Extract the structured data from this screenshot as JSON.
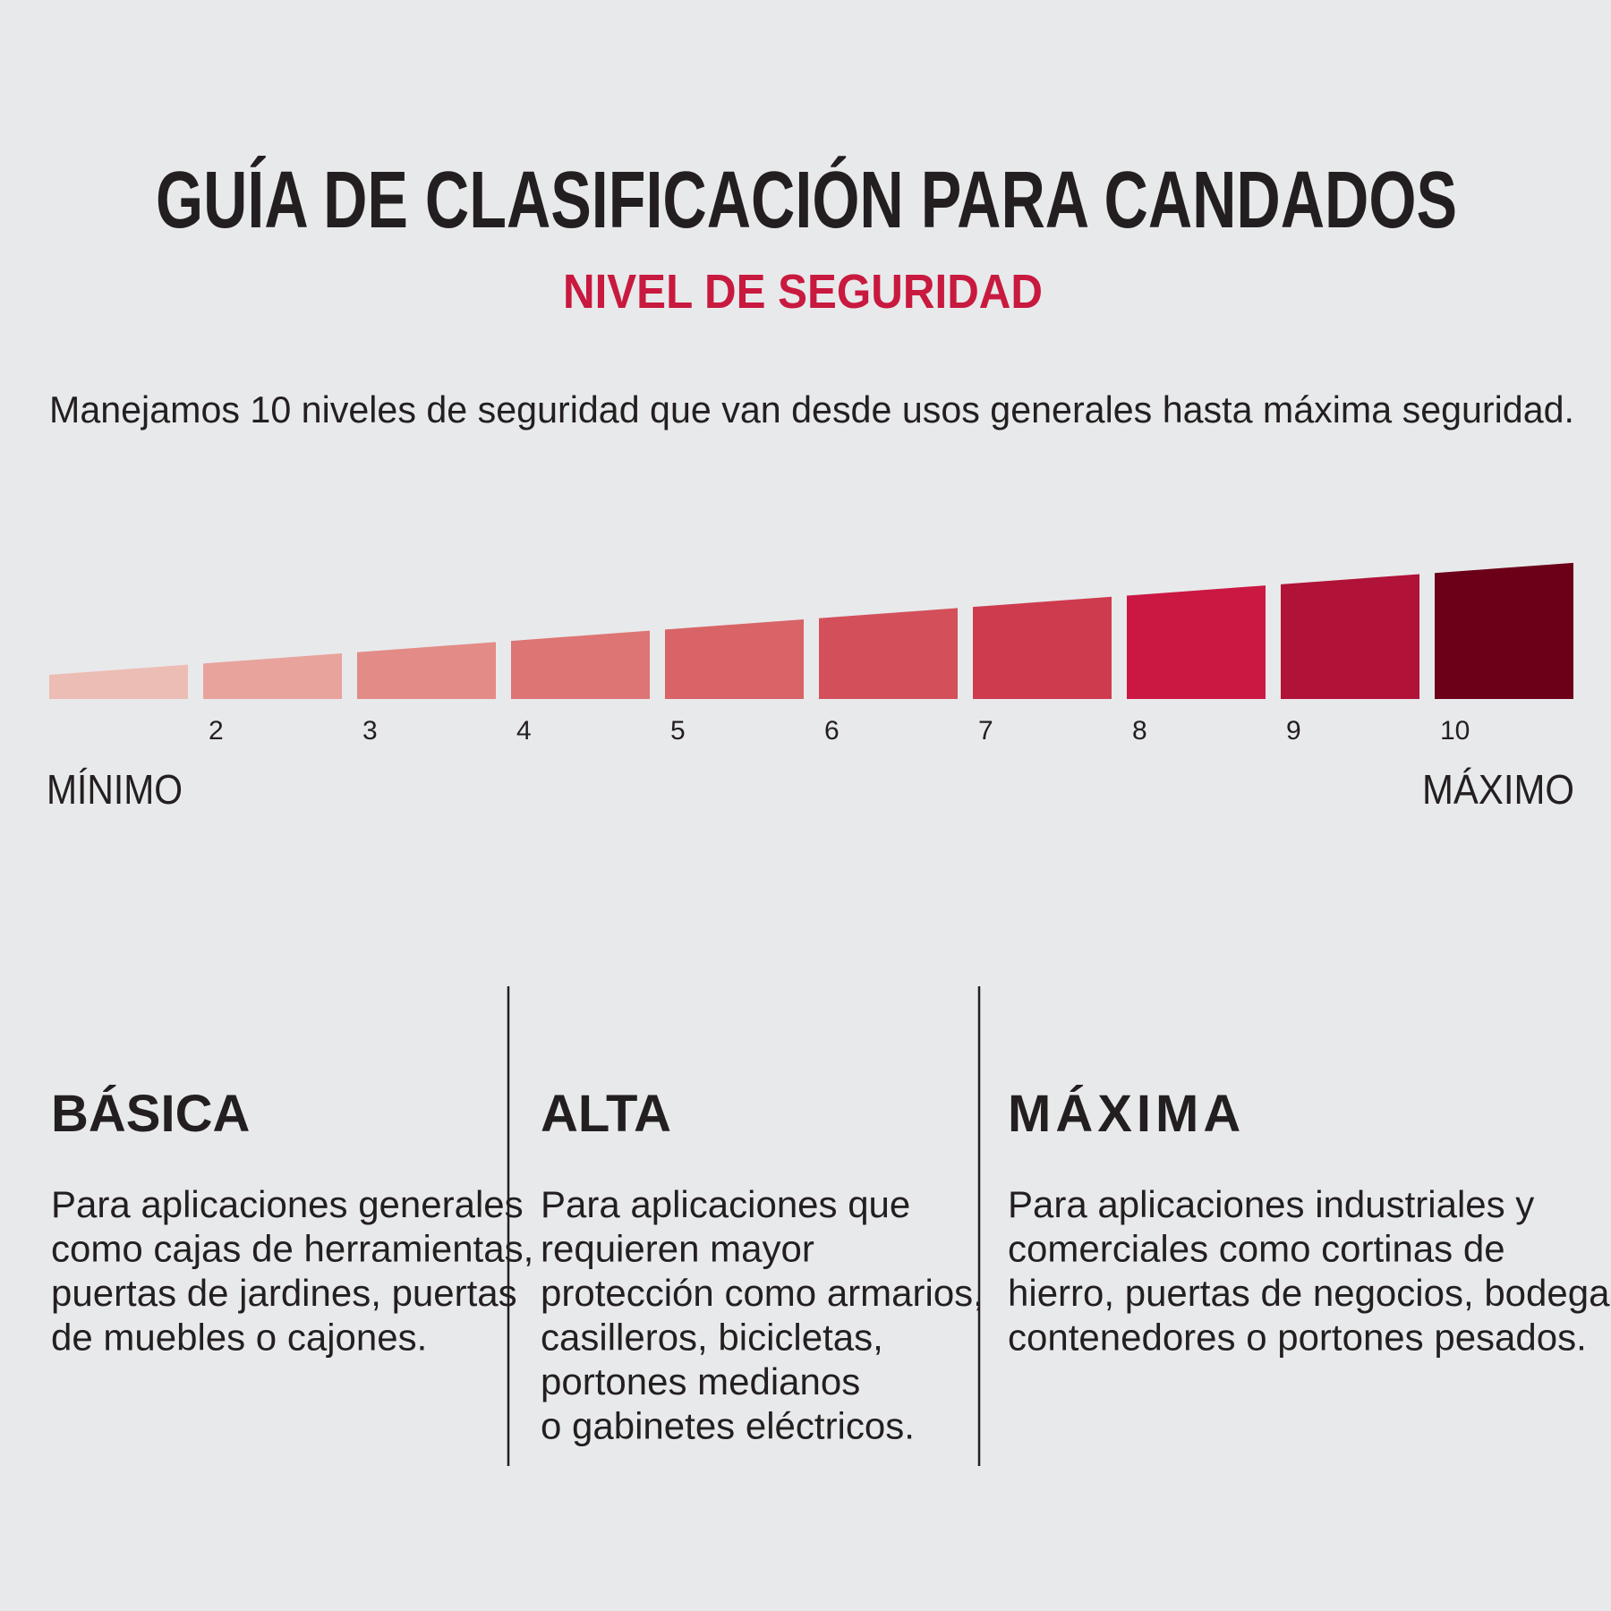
{
  "header": {
    "title": "GUÍA DE CLASIFICACIÓN PARA CANDADOS",
    "subtitle": "NIVEL DE SEGURIDAD"
  },
  "intro": "Manejamos 10 niveles de seguridad que van desde usos generales hasta máxima seguridad.",
  "scale": {
    "levels": [
      {
        "label": null,
        "color": "#ecbdb4"
      },
      {
        "label": "2",
        "color": "#e8a39d"
      },
      {
        "label": "3",
        "color": "#e38b86"
      },
      {
        "label": "4",
        "color": "#dd7574"
      },
      {
        "label": "5",
        "color": "#d86467"
      },
      {
        "label": "6",
        "color": "#d3505b"
      },
      {
        "label": "7",
        "color": "#cf3b4e"
      },
      {
        "label": "8",
        "color": "#cb1842"
      },
      {
        "label": "9",
        "color": "#b01238"
      },
      {
        "label": "10",
        "color": "#6b0018"
      }
    ],
    "min_label": "MÍNIMO",
    "max_label": "MÁXIMO"
  },
  "columns": [
    {
      "heading": "BÁSICA",
      "lines": [
        "Para aplicaciones generales",
        "como cajas de herramientas,",
        "puertas de jardines, puertas",
        "de muebles o cajones."
      ]
    },
    {
      "heading": "ALTA",
      "lines": [
        "Para aplicaciones que",
        "requieren mayor",
        "protección como armarios,",
        "casilleros, bicicletas,",
        "portones medianos",
        "o gabinetes eléctricos."
      ]
    },
    {
      "heading": "MÁXIMA",
      "lines": [
        "Para aplicaciones industriales y",
        "comerciales como cortinas de",
        "hierro, puertas de negocios, bodegas,",
        "contenedores o portones pesados."
      ]
    }
  ]
}
